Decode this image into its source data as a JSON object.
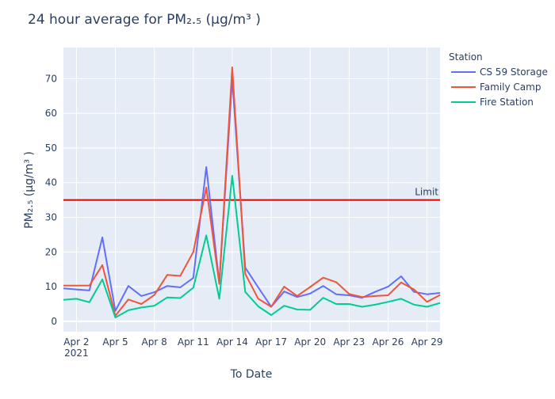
{
  "chart_data": {
    "type": "line",
    "title": "24 hour average for PM₂.₅ (µg/m³ )",
    "xlabel": "To Date",
    "ylabel": "PM₂.₅ (µg/m³ )",
    "x": [
      "2021-04-01",
      "2021-04-02",
      "2021-04-03",
      "2021-04-04",
      "2021-04-05",
      "2021-04-06",
      "2021-04-07",
      "2021-04-08",
      "2021-04-09",
      "2021-04-10",
      "2021-04-11",
      "2021-04-12",
      "2021-04-13",
      "2021-04-14",
      "2021-04-15",
      "2021-04-16",
      "2021-04-17",
      "2021-04-18",
      "2021-04-19",
      "2021-04-20",
      "2021-04-21",
      "2021-04-22",
      "2021-04-23",
      "2021-04-24",
      "2021-04-25",
      "2021-04-26",
      "2021-04-27",
      "2021-04-28",
      "2021-04-29",
      "2021-04-30"
    ],
    "xlim": [
      "2021-04-01",
      "2021-04-30"
    ],
    "ylim": [
      -3,
      79
    ],
    "x_ticks": [
      {
        "value": "2021-04-02",
        "label": "Apr 2",
        "sublabel": "2021"
      },
      {
        "value": "2021-04-05",
        "label": "Apr 5"
      },
      {
        "value": "2021-04-08",
        "label": "Apr 8"
      },
      {
        "value": "2021-04-11",
        "label": "Apr 11"
      },
      {
        "value": "2021-04-14",
        "label": "Apr 14"
      },
      {
        "value": "2021-04-17",
        "label": "Apr 17"
      },
      {
        "value": "2021-04-20",
        "label": "Apr 20"
      },
      {
        "value": "2021-04-23",
        "label": "Apr 23"
      },
      {
        "value": "2021-04-26",
        "label": "Apr 26"
      },
      {
        "value": "2021-04-29",
        "label": "Apr 29"
      }
    ],
    "y_ticks": [
      0,
      10,
      20,
      30,
      40,
      50,
      60,
      70
    ],
    "grid": true,
    "legend": {
      "title": "Station",
      "placement": "right"
    },
    "series": [
      {
        "name": "CS 59 Storage",
        "color": "#636efa",
        "values": [
          9.5,
          9.2,
          8.9,
          24.2,
          3.0,
          10.2,
          7.3,
          8.4,
          10.2,
          9.8,
          12.5,
          44.5,
          11.0,
          70.0,
          15.5,
          9.8,
          4.2,
          8.6,
          7.0,
          8.0,
          10.2,
          7.8,
          7.5,
          6.8,
          8.5,
          10.0,
          13.0,
          8.5,
          7.8,
          8.2
        ]
      },
      {
        "name": "Family Camp",
        "color": "#ef553b",
        "values": [
          10.3,
          10.3,
          10.3,
          16.2,
          1.6,
          6.3,
          5.0,
          7.6,
          13.4,
          13.1,
          20.0,
          38.6,
          10.8,
          73.3,
          13.7,
          6.5,
          4.2,
          10.0,
          7.3,
          9.9,
          12.6,
          11.3,
          7.9,
          7.0,
          7.3,
          7.5,
          11.2,
          9.2,
          5.6,
          7.6
        ]
      },
      {
        "name": "Fire Station",
        "color": "#00cc96",
        "values": [
          6.2,
          6.5,
          5.5,
          12.1,
          1.1,
          3.2,
          4.0,
          4.5,
          6.9,
          6.7,
          9.7,
          24.8,
          6.5,
          42.0,
          8.5,
          4.3,
          1.8,
          4.5,
          3.4,
          3.3,
          6.8,
          5.0,
          5.0,
          4.2,
          4.8,
          5.6,
          6.5,
          4.8,
          4.2,
          5.3
        ]
      }
    ],
    "reference_lines": [
      {
        "y": 35,
        "label": "Limit",
        "color": "#e00000"
      }
    ],
    "plot_background": "#e5ecf6",
    "gridline_color": "#ffffff"
  }
}
